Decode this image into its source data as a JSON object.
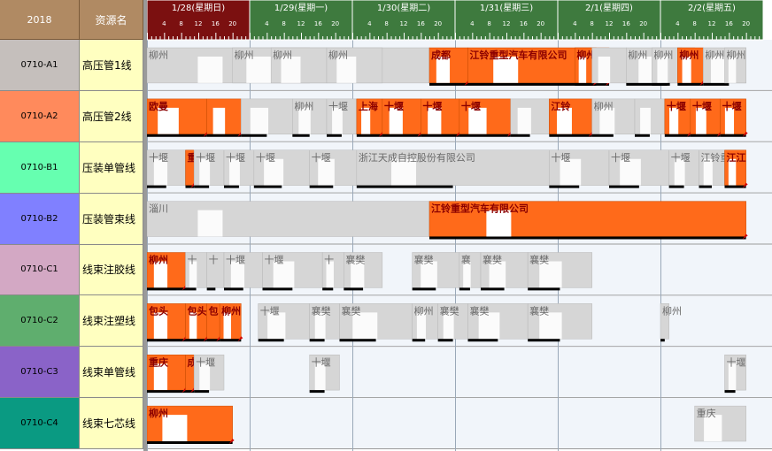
{
  "header": {
    "year": "2018",
    "resource_col": "资源名"
  },
  "timeline": {
    "days": [
      {
        "label": "1/28(星期日)",
        "active": true
      },
      {
        "label": "1/29(星期一)",
        "active": false
      },
      {
        "label": "1/30(星期二)",
        "active": false
      },
      {
        "label": "1/31(星期三)",
        "active": false
      },
      {
        "label": "2/1(星期四)",
        "active": false
      },
      {
        "label": "2/2(星期五)",
        "active": false
      }
    ],
    "hour_ticks": [
      "4",
      "8",
      "12",
      "16",
      "20"
    ],
    "hours_visible": 140
  },
  "colors": {
    "header": "#b08a63",
    "day_active": "#7b1010",
    "day_inactive": "#3e7a3e",
    "name_bg": "#ffffc0",
    "orange_bar": "#ff6a1a",
    "gray_bar": "#d6d6d6",
    "stripe_bg": "#f1f5fa",
    "late_marker": "#d10000"
  },
  "rows": [
    {
      "code": "0710-A1",
      "name": "高压管1线",
      "color": "#c5bfbc"
    },
    {
      "code": "0710-A2",
      "name": "高压管2线",
      "color": "#ff8a5c"
    },
    {
      "code": "0710-B1",
      "name": "压装单管线",
      "color": "#66ffb0"
    },
    {
      "code": "0710-B2",
      "name": "压装管束线",
      "color": "#8080ff"
    },
    {
      "code": "0710-C1",
      "name": "线束注胶线",
      "color": "#d3a8c4"
    },
    {
      "code": "0710-C2",
      "name": "线束注塑线",
      "color": "#5fae6e"
    },
    {
      "code": "0710-C3",
      "name": "线束单管线",
      "color": "#8a63c8"
    },
    {
      "code": "0710-C4",
      "name": "线束七芯线",
      "color": "#0a9a82"
    }
  ],
  "tasks": [
    {
      "row": 0,
      "kind": "gray",
      "start": 0,
      "end": 66,
      "label": "柳州",
      "progress": 0
    },
    {
      "row": 0,
      "kind": "gray",
      "start": 20,
      "end": 38,
      "label": "柳州",
      "progress": 0
    },
    {
      "row": 0,
      "kind": "gray",
      "start": 29,
      "end": 42,
      "label": "柳州",
      "progress": 0
    },
    {
      "row": 0,
      "kind": "gray",
      "start": 42,
      "end": 55,
      "label": "柳州",
      "progress": 0
    },
    {
      "row": 0,
      "kind": "orange",
      "start": 66,
      "end": 75,
      "label": "成都",
      "progress": 1
    },
    {
      "row": 0,
      "kind": "orange",
      "start": 75,
      "end": 108,
      "label": "江铃重型汽车有限公司",
      "progress": 1
    },
    {
      "row": 0,
      "kind": "orange",
      "start": 100,
      "end": 105,
      "label": "柳州",
      "progress": 1
    },
    {
      "row": 0,
      "kind": "gray",
      "start": 104,
      "end": 112,
      "label": "",
      "progress": 0
    },
    {
      "row": 0,
      "kind": "gray",
      "start": 112,
      "end": 128,
      "label": "柳州",
      "progress": 0.6
    },
    {
      "row": 0,
      "kind": "gray",
      "start": 118,
      "end": 125,
      "label": "柳州",
      "progress": 0.6
    },
    {
      "row": 0,
      "kind": "orange",
      "start": 124,
      "end": 130,
      "label": "柳州",
      "progress": 1
    },
    {
      "row": 0,
      "kind": "gray",
      "start": 130,
      "end": 140,
      "label": "柳州",
      "progress": 0.6
    },
    {
      "row": 0,
      "kind": "gray",
      "start": 135,
      "end": 140,
      "label": "柳州",
      "progress": 0
    },
    {
      "row": 1,
      "kind": "orange",
      "start": 0,
      "end": 14,
      "label": "欧曼",
      "progress": 1
    },
    {
      "row": 1,
      "kind": "orange",
      "start": 14,
      "end": 22,
      "label": "",
      "progress": 1
    },
    {
      "row": 1,
      "kind": "gray",
      "start": 22,
      "end": 34,
      "label": "",
      "progress": 0.5
    },
    {
      "row": 1,
      "kind": "gray",
      "start": 34,
      "end": 42,
      "label": "柳州",
      "progress": 0.5
    },
    {
      "row": 1,
      "kind": "gray",
      "start": 42,
      "end": 49,
      "label": "十堰",
      "progress": 0.5
    },
    {
      "row": 1,
      "kind": "orange",
      "start": 49,
      "end": 55,
      "label": "上海",
      "progress": 1
    },
    {
      "row": 1,
      "kind": "orange",
      "start": 55,
      "end": 64,
      "label": "十堰",
      "progress": 1
    },
    {
      "row": 1,
      "kind": "orange",
      "start": 64,
      "end": 73,
      "label": "十堰",
      "progress": 1
    },
    {
      "row": 1,
      "kind": "orange",
      "start": 73,
      "end": 85,
      "label": "十堰",
      "progress": 1
    },
    {
      "row": 1,
      "kind": "gray",
      "start": 85,
      "end": 94,
      "label": "",
      "progress": 0.5
    },
    {
      "row": 1,
      "kind": "orange",
      "start": 94,
      "end": 104,
      "label": "江铃",
      "progress": 1
    },
    {
      "row": 1,
      "kind": "gray",
      "start": 104,
      "end": 114,
      "label": "柳州",
      "progress": 0.5
    },
    {
      "row": 1,
      "kind": "gray",
      "start": 114,
      "end": 121,
      "label": "",
      "progress": 0.5
    },
    {
      "row": 1,
      "kind": "orange",
      "start": 121,
      "end": 127,
      "label": "十堰",
      "progress": 1
    },
    {
      "row": 1,
      "kind": "orange",
      "start": 127,
      "end": 134,
      "label": "十堰",
      "progress": 1
    },
    {
      "row": 1,
      "kind": "orange",
      "start": 134,
      "end": 140,
      "label": "十堰",
      "progress": 1
    },
    {
      "row": 2,
      "kind": "gray",
      "start": 0,
      "end": 9,
      "label": "十堰",
      "progress": 0.5
    },
    {
      "row": 2,
      "kind": "orange",
      "start": 9,
      "end": 11,
      "label": "重",
      "progress": 1
    },
    {
      "row": 2,
      "kind": "gray",
      "start": 11,
      "end": 18,
      "label": "十堰",
      "progress": 0.5
    },
    {
      "row": 2,
      "kind": "gray",
      "start": 18,
      "end": 25,
      "label": "十堰",
      "progress": 0.5
    },
    {
      "row": 2,
      "kind": "gray",
      "start": 25,
      "end": 38,
      "label": "十堰",
      "progress": 0.5
    },
    {
      "row": 2,
      "kind": "gray",
      "start": 38,
      "end": 49,
      "label": "十堰",
      "progress": 0.5
    },
    {
      "row": 2,
      "kind": "gray",
      "start": 49,
      "end": 94,
      "label": "浙江天成自控股份有限公司",
      "progress": 0.5
    },
    {
      "row": 2,
      "kind": "gray",
      "start": 94,
      "end": 108,
      "label": "十堰",
      "progress": 0.5
    },
    {
      "row": 2,
      "kind": "gray",
      "start": 108,
      "end": 122,
      "label": "十堰",
      "progress": 0.5
    },
    {
      "row": 2,
      "kind": "gray",
      "start": 122,
      "end": 129,
      "label": "十堰",
      "progress": 0.5
    },
    {
      "row": 2,
      "kind": "gray",
      "start": 129,
      "end": 135,
      "label": "江铃重",
      "progress": 0.5
    },
    {
      "row": 2,
      "kind": "orange",
      "start": 135,
      "end": 140,
      "label": "江江",
      "progress": 1
    },
    {
      "row": 3,
      "kind": "gray",
      "start": 0,
      "end": 66,
      "label": "淄川",
      "progress": 0
    },
    {
      "row": 3,
      "kind": "orange",
      "start": 66,
      "end": 140,
      "label": "江铃重型汽车有限公司",
      "progress": 1
    },
    {
      "row": 4,
      "kind": "orange",
      "start": 0,
      "end": 9,
      "label": "柳州",
      "progress": 1
    },
    {
      "row": 4,
      "kind": "gray",
      "start": 9,
      "end": 14,
      "label": "十",
      "progress": 0.5
    },
    {
      "row": 4,
      "kind": "gray",
      "start": 14,
      "end": 18,
      "label": "十",
      "progress": 0.5
    },
    {
      "row": 4,
      "kind": "gray",
      "start": 18,
      "end": 27,
      "label": "十堰",
      "progress": 0.5
    },
    {
      "row": 4,
      "kind": "gray",
      "start": 27,
      "end": 41,
      "label": "十堰",
      "progress": 0.5
    },
    {
      "row": 4,
      "kind": "gray",
      "start": 41,
      "end": 46,
      "label": "十",
      "progress": 0.5
    },
    {
      "row": 4,
      "kind": "gray",
      "start": 46,
      "end": 55,
      "label": "襄樊",
      "progress": 0.5
    },
    {
      "row": 4,
      "kind": "gray",
      "start": 62,
      "end": 73,
      "label": "襄樊",
      "progress": 0.5
    },
    {
      "row": 4,
      "kind": "gray",
      "start": 73,
      "end": 78,
      "label": "襄",
      "progress": 0.5
    },
    {
      "row": 4,
      "kind": "gray",
      "start": 78,
      "end": 89,
      "label": "襄樊",
      "progress": 0.5
    },
    {
      "row": 4,
      "kind": "gray",
      "start": 89,
      "end": 104,
      "label": "襄樊",
      "progress": 0.5
    },
    {
      "row": 5,
      "kind": "orange",
      "start": 0,
      "end": 9,
      "label": "包头",
      "progress": 1
    },
    {
      "row": 5,
      "kind": "orange",
      "start": 9,
      "end": 14,
      "label": "包头",
      "progress": 1
    },
    {
      "row": 5,
      "kind": "orange",
      "start": 14,
      "end": 17,
      "label": "包",
      "progress": 1
    },
    {
      "row": 5,
      "kind": "orange",
      "start": 17,
      "end": 22,
      "label": "柳州",
      "progress": 1
    },
    {
      "row": 5,
      "kind": "gray",
      "start": 26,
      "end": 38,
      "label": "十堰",
      "progress": 0.5
    },
    {
      "row": 5,
      "kind": "gray",
      "start": 38,
      "end": 45,
      "label": "襄樊",
      "progress": 0.5
    },
    {
      "row": 5,
      "kind": "gray",
      "start": 45,
      "end": 62,
      "label": "襄樊",
      "progress": 0.5
    },
    {
      "row": 5,
      "kind": "gray",
      "start": 62,
      "end": 68,
      "label": "柳州",
      "progress": 0.5
    },
    {
      "row": 5,
      "kind": "gray",
      "start": 68,
      "end": 75,
      "label": "襄樊",
      "progress": 0.5
    },
    {
      "row": 5,
      "kind": "gray",
      "start": 75,
      "end": 89,
      "label": "襄樊",
      "progress": 0.5
    },
    {
      "row": 5,
      "kind": "gray",
      "start": 89,
      "end": 104,
      "label": "襄樊",
      "progress": 0.5
    },
    {
      "row": 5,
      "kind": "gray",
      "start": 120,
      "end": 122,
      "label": "柳州",
      "progress": 0.5
    },
    {
      "row": 6,
      "kind": "orange",
      "start": 0,
      "end": 9,
      "label": "重庆",
      "progress": 1
    },
    {
      "row": 6,
      "kind": "orange",
      "start": 9,
      "end": 11,
      "label": "成",
      "progress": 1
    },
    {
      "row": 6,
      "kind": "gray",
      "start": 11,
      "end": 18,
      "label": "十堰",
      "progress": 0.5
    },
    {
      "row": 6,
      "kind": "gray",
      "start": 38,
      "end": 45,
      "label": "十堰",
      "progress": 0.5
    },
    {
      "row": 6,
      "kind": "gray",
      "start": 135,
      "end": 140,
      "label": "十堰",
      "progress": 0.5
    },
    {
      "row": 7,
      "kind": "orange",
      "start": 0,
      "end": 20,
      "label": "柳州",
      "progress": 1
    },
    {
      "row": 7,
      "kind": "gray",
      "start": 128,
      "end": 140,
      "label": "重庆",
      "progress": 0
    }
  ]
}
